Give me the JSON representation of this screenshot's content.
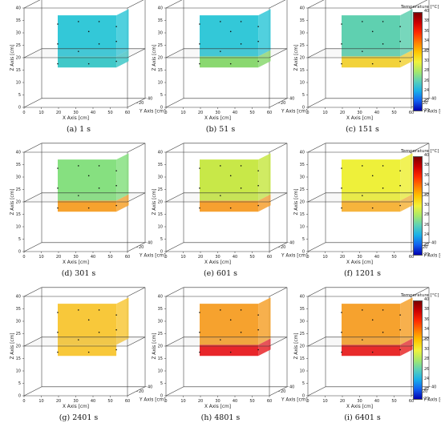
{
  "chart_data": [
    {
      "type": "heatmap",
      "caption_letter": "(a)",
      "caption_time": "1 s",
      "xlabel": "X Axis [cm]",
      "ylabel": "Y Axis [cm]",
      "zlabel": "Z Axis [cm]",
      "x_ticks": [
        "0",
        "10",
        "20",
        "30",
        "40",
        "50",
        "60"
      ],
      "y_ticks": [
        "20",
        "40"
      ],
      "z_ticks": [
        "0",
        "5",
        "10",
        "15",
        "20",
        "25",
        "30",
        "35",
        "40"
      ],
      "x_range": [
        0,
        60
      ],
      "y_range": [
        0,
        40
      ],
      "z_range": [
        0,
        40
      ],
      "upper_block_color": "#33c8d8",
      "lower_block_color": "#40c8c8",
      "lower_visible": true
    },
    {
      "type": "heatmap",
      "caption_letter": "(b)",
      "caption_time": "51 s",
      "xlabel": "X Axis [cm]",
      "ylabel": "Y Axis [cm]",
      "zlabel": "Z Axis [cm]",
      "x_ticks": [
        "0",
        "10",
        "20",
        "30",
        "40",
        "50",
        "60"
      ],
      "y_ticks": [
        "20",
        "40"
      ],
      "z_ticks": [
        "0",
        "5",
        "10",
        "15",
        "20",
        "25",
        "30",
        "35",
        "40"
      ],
      "x_range": [
        0,
        60
      ],
      "y_range": [
        0,
        40
      ],
      "z_range": [
        0,
        40
      ],
      "upper_block_color": "#33c8d8",
      "lower_block_color": "#8ad870",
      "lower_visible": true
    },
    {
      "type": "heatmap",
      "caption_letter": "(c)",
      "caption_time": "151 s",
      "xlabel": "X Axis [cm]",
      "ylabel": "Y Axis [cm]",
      "zlabel": "Z Axis [cm]",
      "x_ticks": [
        "0",
        "10",
        "20",
        "30",
        "40",
        "50",
        "60"
      ],
      "y_ticks": [
        "20",
        "40"
      ],
      "z_ticks": [
        "0",
        "5",
        "10",
        "15",
        "20",
        "25",
        "30",
        "35",
        "40"
      ],
      "x_range": [
        0,
        60
      ],
      "y_range": [
        0,
        40
      ],
      "z_range": [
        0,
        40
      ],
      "upper_block_color": "#5fd0b0",
      "lower_block_color": "#f2d23a",
      "lower_visible": true
    },
    {
      "type": "heatmap",
      "caption_letter": "(d)",
      "caption_time": "301 s",
      "xlabel": "X Axis [cm]",
      "ylabel": "Y Axis [cm]",
      "zlabel": "Z Axis [cm]",
      "x_ticks": [
        "0",
        "10",
        "20",
        "30",
        "40",
        "50",
        "60"
      ],
      "y_ticks": [
        "20",
        "40"
      ],
      "z_ticks": [
        "0",
        "5",
        "10",
        "15",
        "20",
        "25",
        "30",
        "35",
        "40"
      ],
      "x_range": [
        0,
        60
      ],
      "y_range": [
        0,
        40
      ],
      "z_range": [
        0,
        40
      ],
      "upper_block_color": "#86e080",
      "lower_block_color": "#f6a22e",
      "lower_visible": true
    },
    {
      "type": "heatmap",
      "caption_letter": "(e)",
      "caption_time": "601 s",
      "xlabel": "X Axis [cm]",
      "ylabel": "Y Axis [cm]",
      "zlabel": "Z Axis [cm]",
      "x_ticks": [
        "0",
        "10",
        "20",
        "30",
        "40",
        "50",
        "60"
      ],
      "y_ticks": [
        "20",
        "40"
      ],
      "z_ticks": [
        "0",
        "5",
        "10",
        "15",
        "20",
        "25",
        "30",
        "35",
        "40"
      ],
      "x_range": [
        0,
        60
      ],
      "y_range": [
        0,
        40
      ],
      "z_range": [
        0,
        40
      ],
      "upper_block_color": "#c8e848",
      "lower_block_color": "#f6a030",
      "lower_visible": true
    },
    {
      "type": "heatmap",
      "caption_letter": "(f)",
      "caption_time": "1201 s",
      "xlabel": "X Axis [cm]",
      "ylabel": "Y Axis [cm]",
      "zlabel": "Z Axis [cm]",
      "x_ticks": [
        "0",
        "10",
        "20",
        "30",
        "40",
        "50",
        "60"
      ],
      "y_ticks": [
        "20",
        "40"
      ],
      "z_ticks": [
        "0",
        "5",
        "10",
        "15",
        "20",
        "25",
        "30",
        "35",
        "40"
      ],
      "x_range": [
        0,
        60
      ],
      "y_range": [
        0,
        40
      ],
      "z_range": [
        0,
        40
      ],
      "upper_block_color": "#eef03a",
      "lower_block_color": "#f6b43c",
      "lower_visible": true
    },
    {
      "type": "heatmap",
      "caption_letter": "(g)",
      "caption_time": "2401 s",
      "xlabel": "X Axis [cm]",
      "ylabel": "Y Axis [cm]",
      "zlabel": "Z Axis [cm]",
      "x_ticks": [
        "0",
        "10",
        "20",
        "30",
        "40",
        "50",
        "60"
      ],
      "y_ticks": [
        "20",
        "40"
      ],
      "z_ticks": [
        "0",
        "5",
        "10",
        "15",
        "20",
        "25",
        "30",
        "35",
        "40"
      ],
      "x_range": [
        0,
        60
      ],
      "y_range": [
        0,
        40
      ],
      "z_range": [
        0,
        40
      ],
      "upper_block_color": "#f8c83a",
      "lower_block_color": "#f8c83a",
      "lower_visible": false
    },
    {
      "type": "heatmap",
      "caption_letter": "(h)",
      "caption_time": "4801 s",
      "xlabel": "X Axis [cm]",
      "ylabel": "Y Axis [cm]",
      "zlabel": "Z Axis [cm]",
      "x_ticks": [
        "0",
        "10",
        "20",
        "30",
        "40",
        "50",
        "60"
      ],
      "y_ticks": [
        "20",
        "40"
      ],
      "z_ticks": [
        "0",
        "5",
        "10",
        "15",
        "20",
        "25",
        "30",
        "35",
        "40"
      ],
      "x_range": [
        0,
        60
      ],
      "y_range": [
        0,
        40
      ],
      "z_range": [
        0,
        40
      ],
      "upper_block_color": "#f6a22e",
      "lower_block_color": "#e8262a",
      "lower_visible": true
    },
    {
      "type": "heatmap",
      "caption_letter": "(i)",
      "caption_time": "6401 s",
      "xlabel": "X Axis [cm]",
      "ylabel": "Y Axis [cm]",
      "zlabel": "Z Axis [cm]",
      "x_ticks": [
        "0",
        "10",
        "20",
        "30",
        "40",
        "50",
        "60"
      ],
      "y_ticks": [
        "20",
        "40"
      ],
      "z_ticks": [
        "0",
        "5",
        "10",
        "15",
        "20",
        "25",
        "30",
        "35",
        "40"
      ],
      "x_range": [
        0,
        60
      ],
      "y_range": [
        0,
        40
      ],
      "z_range": [
        0,
        40
      ],
      "upper_block_color": "#f6a22e",
      "lower_block_color": "#e82a2a",
      "lower_visible": true
    }
  ],
  "colorbar": {
    "title": "Temperature [°C]",
    "ticks": [
      "40",
      "38",
      "36",
      "34",
      "32",
      "30",
      "28",
      "26",
      "24",
      "22",
      "20"
    ],
    "range": [
      20,
      40
    ],
    "colors": [
      "#7a0000",
      "#cc0000",
      "#ff2a00",
      "#ff7a00",
      "#ffc400",
      "#f2f23a",
      "#a8e86a",
      "#5cd0b8",
      "#1ab0e8",
      "#1060f0",
      "#0000b0"
    ]
  }
}
